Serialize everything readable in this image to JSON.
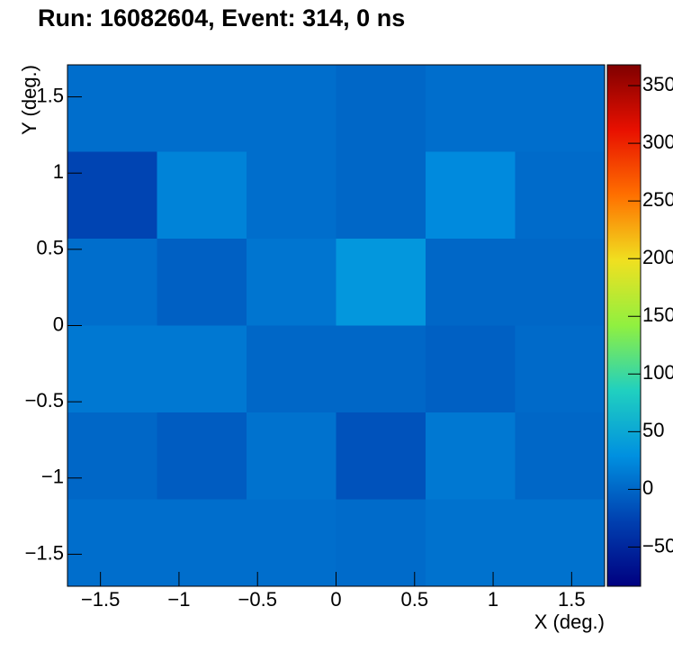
{
  "chart_data": {
    "type": "heatmap",
    "title": "Run: 16082604, Event: 314, 0 ns",
    "x_label": "X (deg.)",
    "y_label": "Y (deg.)",
    "xbins": [
      -1.71,
      -1.14,
      -0.57,
      0,
      0.57,
      1.14,
      1.71
    ],
    "ybins": [
      -1.71,
      -1.14,
      -0.57,
      0,
      0.57,
      1.14,
      1.71
    ],
    "z": [
      [
        5,
        5,
        5,
        3,
        8,
        8
      ],
      [
        0,
        -8,
        8,
        -15,
        12,
        0
      ],
      [
        12,
        12,
        0,
        0,
        -5,
        2
      ],
      [
        5,
        -5,
        10,
        35,
        0,
        0
      ],
      [
        -25,
        20,
        5,
        0,
        25,
        3
      ],
      [
        5,
        5,
        5,
        0,
        5,
        5
      ]
    ],
    "xlim": [
      -1.71,
      1.71
    ],
    "ylim": [
      -1.71,
      1.71
    ],
    "zlim": [
      -84,
      368
    ],
    "xticks": [
      {
        "value": -1.5,
        "label": "−1.5"
      },
      {
        "value": -1,
        "label": "−1"
      },
      {
        "value": -0.5,
        "label": "−0.5"
      },
      0,
      0.5,
      1,
      1.5
    ],
    "yticks": [
      {
        "value": -1.5,
        "label": "−1.5"
      },
      {
        "value": -1,
        "label": "−1"
      },
      {
        "value": -0.5,
        "label": "−0.5"
      },
      0,
      0.5,
      1,
      1.5
    ],
    "zticks": [
      {
        "value": -50,
        "label": "−50"
      },
      0,
      50,
      100,
      150,
      200,
      250,
      300,
      350
    ],
    "colorscale": [
      "#000080",
      "#0040b0",
      "#0090e0",
      "#20d0c0",
      "#90f040",
      "#f0e020",
      "#ff7000",
      "#e81000",
      "#800000"
    ]
  }
}
